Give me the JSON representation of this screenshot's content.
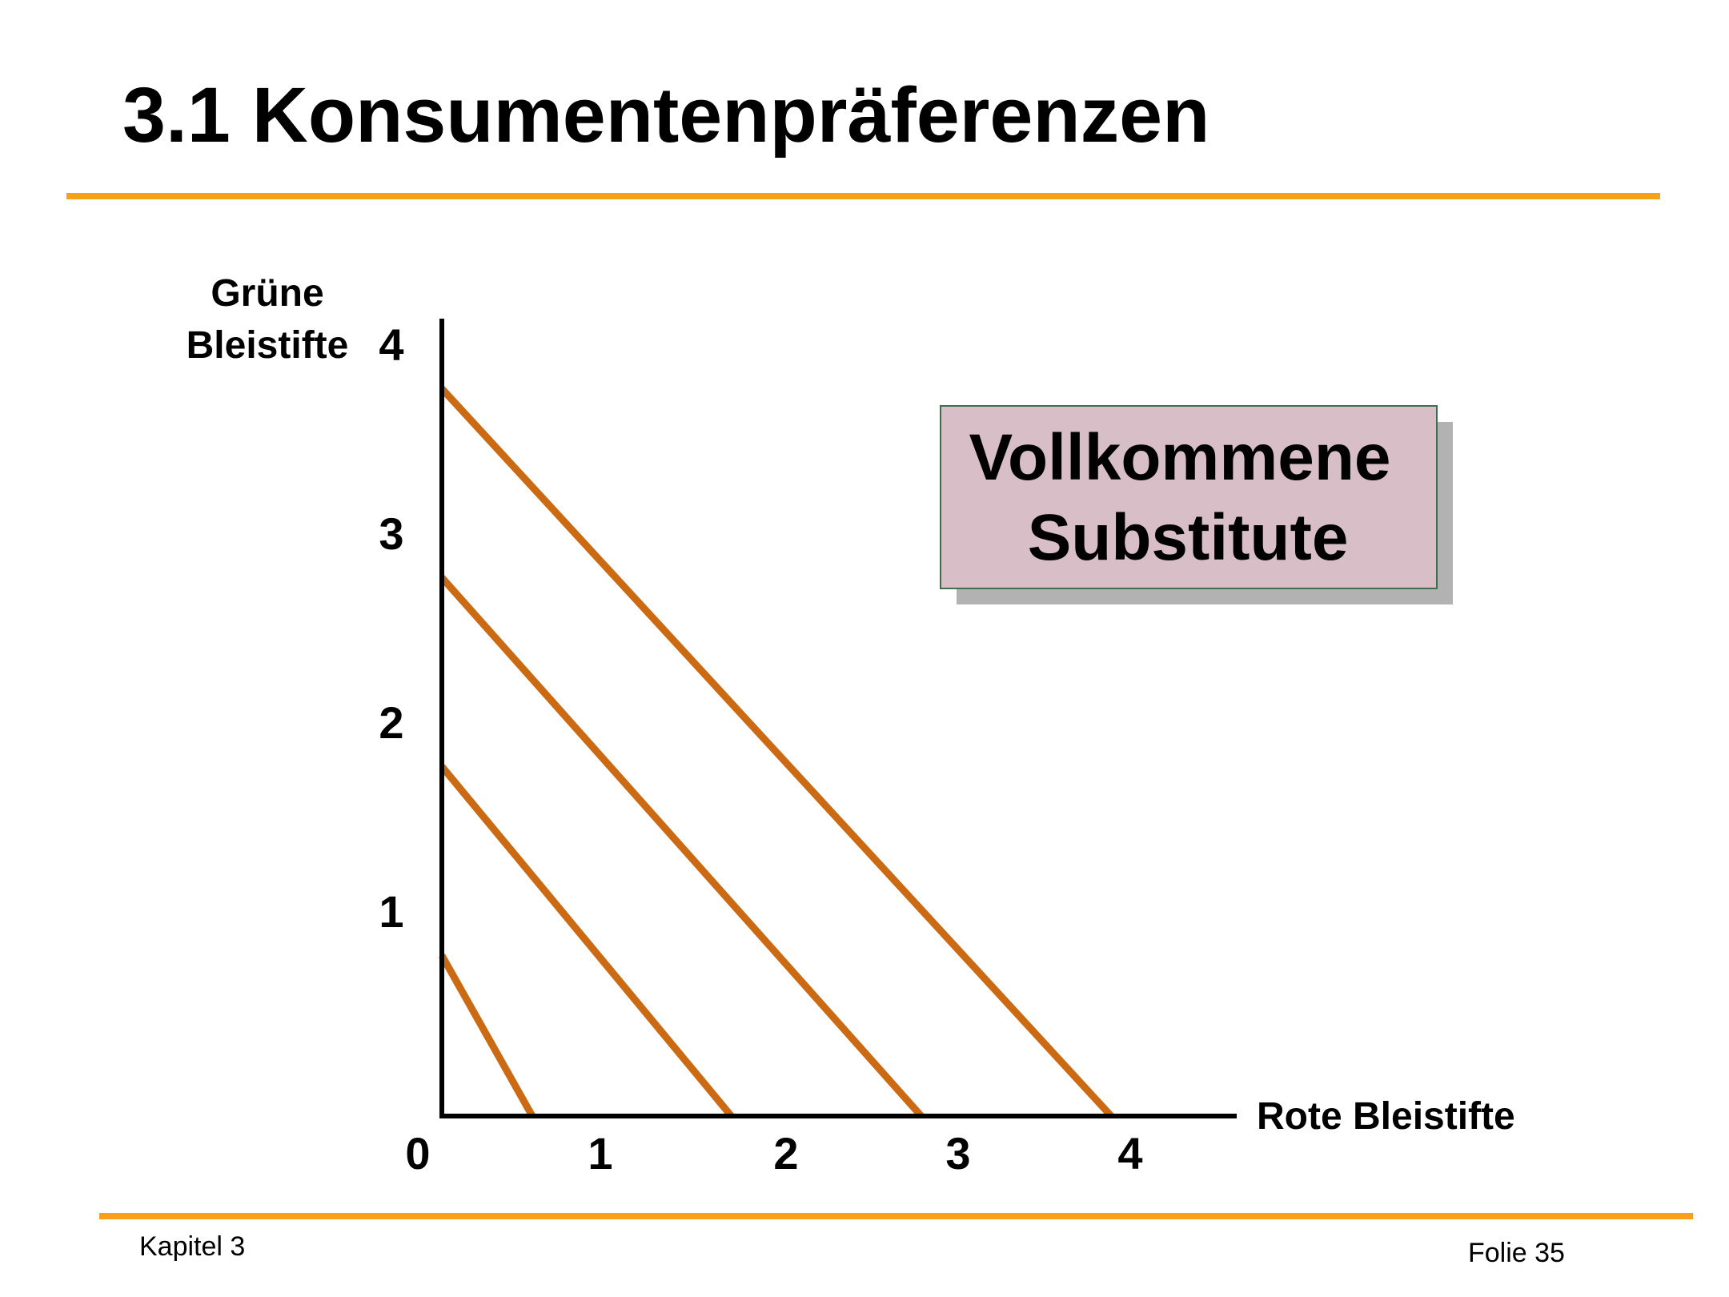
{
  "slide": {
    "title": "3.1 Konsumentenpräferenzen",
    "footer_left": "Kapitel 3",
    "footer_right": "Folie 35"
  },
  "colors": {
    "rule": "#F7A11A",
    "curve": "#CC6A14",
    "callout_fill": "#D8BEC7",
    "callout_border": "#3F6E4E",
    "callout_shadow": "#B2B2B2"
  },
  "callout": {
    "line1": "Vollkommene",
    "line2": "Substitute"
  },
  "chart_data": {
    "type": "line",
    "ylabel_lines": [
      "Grüne",
      "Bleistifte"
    ],
    "xlabel": "Rote Bleistifte",
    "xlim": [
      0,
      4.6
    ],
    "ylim": [
      0,
      4.6
    ],
    "x_ticks": [
      "0",
      "1",
      "2",
      "3",
      "4"
    ],
    "y_ticks": [
      "1",
      "2",
      "3",
      "4"
    ],
    "grid": false,
    "legend": "none",
    "series": [
      {
        "points": [
          [
            0,
            0.85
          ],
          [
            0.5,
            0
          ]
        ]
      },
      {
        "points": [
          [
            0,
            1.85
          ],
          [
            1.6,
            0
          ]
        ]
      },
      {
        "points": [
          [
            0,
            2.85
          ],
          [
            2.65,
            0
          ]
        ]
      },
      {
        "points": [
          [
            0,
            3.85
          ],
          [
            3.7,
            0
          ]
        ]
      }
    ]
  }
}
